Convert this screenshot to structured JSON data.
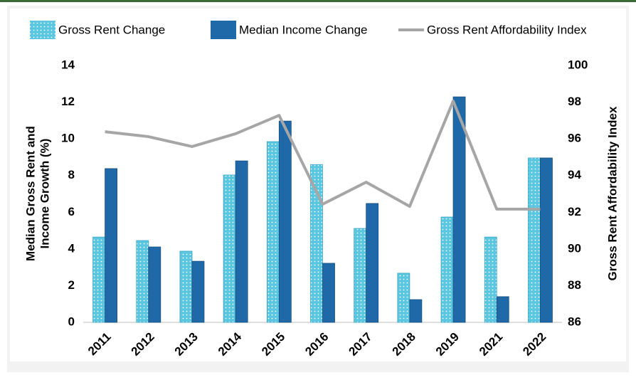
{
  "chart_data": {
    "type": "bar_line",
    "categories": [
      "2011",
      "2012",
      "2013",
      "2014",
      "2015",
      "2016",
      "2017",
      "2018",
      "2019",
      "2021",
      "2022"
    ],
    "series": [
      {
        "name": "Gross Rent Change",
        "type": "bar",
        "color": "#5bc6e0",
        "values": [
          4.65,
          4.46,
          3.88,
          8.03,
          9.85,
          8.6,
          5.12,
          2.68,
          5.74,
          4.65,
          8.96
        ]
      },
      {
        "name": "Median Income Change",
        "type": "bar",
        "color": "#1f69a8",
        "values": [
          8.38,
          4.11,
          3.33,
          8.8,
          10.97,
          3.22,
          6.48,
          1.24,
          12.29,
          1.4,
          8.96
        ]
      },
      {
        "name": "Gross Rent Affordability Index",
        "type": "line",
        "axis": "y2",
        "color": "#a6a6a6",
        "values": [
          96.39,
          96.12,
          95.58,
          96.28,
          97.28,
          92.44,
          93.64,
          92.32,
          98.06,
          92.17,
          92.17
        ]
      }
    ],
    "ylabel": [
      "Median Gross Rent and",
      "Income Growth (%)"
    ],
    "y2label": "Gross Rent Affordability Index",
    "ylim": [
      0,
      14
    ],
    "yticks": [
      0,
      2,
      4,
      6,
      8,
      10,
      12,
      14
    ],
    "y2lim": [
      86,
      100
    ],
    "y2ticks": [
      86,
      88,
      90,
      92,
      94,
      96,
      98,
      100
    ],
    "legend": "top"
  }
}
